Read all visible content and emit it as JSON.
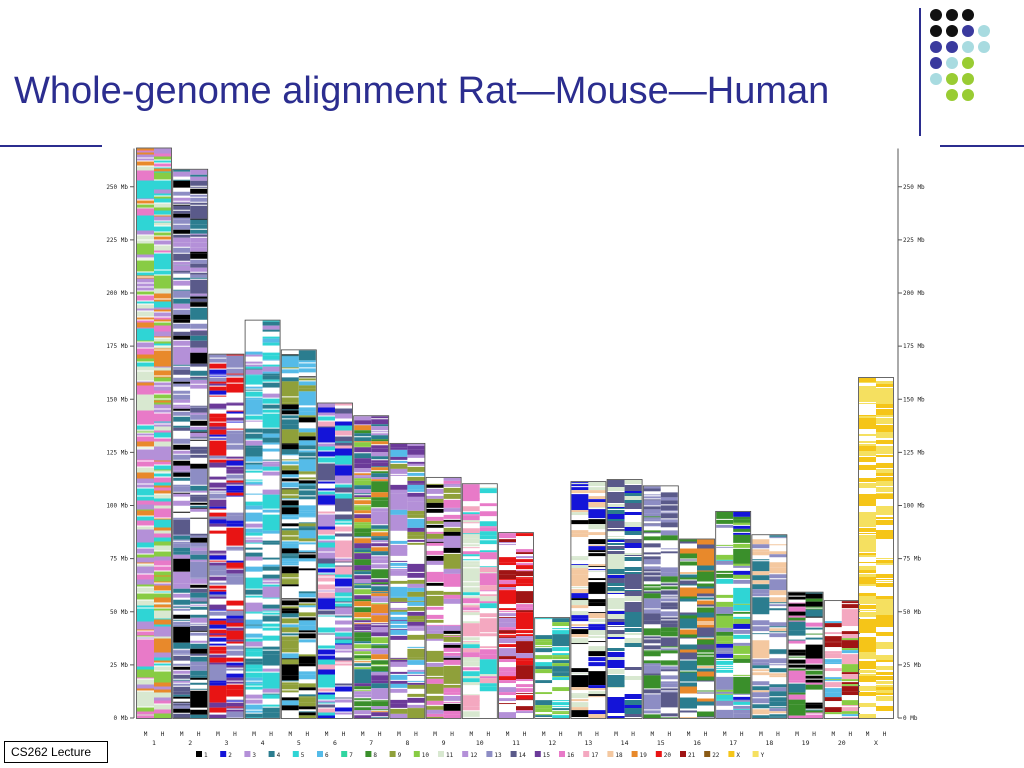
{
  "slide": {
    "title": "Whole-genome alignment Rat—Mouse—Human",
    "footer": "CS262 Lecture"
  },
  "decor": {
    "dot_colors": [
      "#111111",
      "#3a3a9e",
      "#a8dbe0",
      "#99cc33"
    ],
    "dot_grid": [
      [
        0,
        0,
        0,
        -1
      ],
      [
        0,
        0,
        1,
        2
      ],
      [
        1,
        1,
        2,
        2
      ],
      [
        1,
        2,
        3,
        -1
      ],
      [
        2,
        3,
        3,
        -1
      ],
      [
        -1,
        3,
        3,
        -1
      ]
    ],
    "accent": "#2b2d8f"
  },
  "chart_data": {
    "type": "chromosome-map",
    "column_labels": [
      "M",
      "H"
    ],
    "axis_labels": [
      "250 Mb",
      "225 Mb",
      "200 Mb",
      "175 Mb",
      "150 Mb",
      "125 Mb",
      "100 Mb",
      "75 Mb",
      "50 Mb",
      "25 Mb",
      "0 Mb"
    ],
    "axis_values": [
      250,
      225,
      200,
      175,
      150,
      125,
      100,
      75,
      50,
      25,
      0
    ],
    "ylim": [
      0,
      268
    ],
    "chromosomes": [
      {
        "label": "1",
        "size": 268,
        "colors": [
          "#e8892b",
          "#2fd5d5",
          "#88cc44",
          "#d8e8d0",
          "#e87ac8",
          "#b490d8"
        ]
      },
      {
        "label": "2",
        "size": 258,
        "colors": [
          "#b490d8",
          "#2b7d8f",
          "#000000",
          "#8d8dc4",
          "#5a5a8a",
          "#ffffff"
        ]
      },
      {
        "label": "3",
        "size": 171,
        "colors": [
          "#1414d8",
          "#e81414",
          "#8d8dc4",
          "#6b3a99",
          "#ffffff"
        ]
      },
      {
        "label": "4",
        "size": 187,
        "colors": [
          "#55bbe8",
          "#b490d8",
          "#2fd5d5",
          "#ffffff",
          "#2b7d8f"
        ]
      },
      {
        "label": "5",
        "size": 173,
        "colors": [
          "#2b7d8f",
          "#000000",
          "#55bbe8",
          "#8fa03a",
          "#ffffff"
        ]
      },
      {
        "label": "6",
        "size": 148,
        "colors": [
          "#b490d8",
          "#2fd5d5",
          "#5a5a8a",
          "#1414d8",
          "#ffffff",
          "#f4a8c0"
        ]
      },
      {
        "label": "7",
        "size": 142,
        "colors": [
          "#6b3a99",
          "#b490d8",
          "#2b7d8f",
          "#88cc44",
          "#3a8f2b",
          "#e8892b"
        ]
      },
      {
        "label": "8",
        "size": 129,
        "colors": [
          "#8fa03a",
          "#b490d8",
          "#6b3a99",
          "#ffffff",
          "#55bbe8"
        ]
      },
      {
        "label": "9",
        "size": 113,
        "colors": [
          "#000000",
          "#8fa03a",
          "#b490d8",
          "#ffffff",
          "#e87ac8"
        ]
      },
      {
        "label": "10",
        "size": 110,
        "colors": [
          "#f4a8c0",
          "#d8e8d0",
          "#2fd5d5",
          "#ffffff",
          "#e87ac8"
        ]
      },
      {
        "label": "11",
        "size": 87,
        "colors": [
          "#e87ac8",
          "#b490d8",
          "#a01414",
          "#ffffff",
          "#e81414"
        ]
      },
      {
        "label": "12",
        "size": 47,
        "colors": [
          "#2b7d8f",
          "#2fd5d5",
          "#88cc44",
          "#ffffff"
        ]
      },
      {
        "label": "13",
        "size": 111,
        "colors": [
          "#000000",
          "#d8e8d0",
          "#1414d8",
          "#f4c8a0",
          "#ffffff"
        ]
      },
      {
        "label": "14",
        "size": 112,
        "colors": [
          "#2b7d8f",
          "#1414d8",
          "#d8e8d0",
          "#5a5a8a",
          "#ffffff"
        ]
      },
      {
        "label": "15",
        "size": 109,
        "colors": [
          "#5a5a8a",
          "#3a8f2b",
          "#ffffff",
          "#8d8dc4"
        ]
      },
      {
        "label": "16",
        "size": 84,
        "colors": [
          "#3a8f2b",
          "#2b7d8f",
          "#5a5a8a",
          "#ffffff",
          "#e8892b"
        ]
      },
      {
        "label": "17",
        "size": 97,
        "colors": [
          "#1414d8",
          "#8d8dc4",
          "#88cc44",
          "#2fd5d5",
          "#ffffff",
          "#3a8f2b"
        ]
      },
      {
        "label": "18",
        "size": 86,
        "colors": [
          "#f4c8a0",
          "#2b7d8f",
          "#ffffff",
          "#8d8dc4"
        ]
      },
      {
        "label": "19",
        "size": 59,
        "colors": [
          "#3a8f2b",
          "#e87ac8",
          "#2b7d8f",
          "#000000",
          "#ffffff"
        ]
      },
      {
        "label": "20",
        "size": 55,
        "colors": [
          "#88cc44",
          "#55bbe8",
          "#f4a8c0",
          "#a01414",
          "#ffffff"
        ]
      },
      {
        "label": "X",
        "size": 160,
        "colors": [
          "#f5c518",
          "#f5e060",
          "#ffffff"
        ]
      }
    ],
    "legend": [
      {
        "label": "1",
        "color": "#000000"
      },
      {
        "label": "2",
        "color": "#1414d8"
      },
      {
        "label": "3",
        "color": "#b490d8"
      },
      {
        "label": "4",
        "color": "#2b7d8f"
      },
      {
        "label": "5",
        "color": "#2fd5d5"
      },
      {
        "label": "6",
        "color": "#55bbe8"
      },
      {
        "label": "7",
        "color": "#2fd5a0"
      },
      {
        "label": "8",
        "color": "#3a8f2b"
      },
      {
        "label": "9",
        "color": "#8fa03a"
      },
      {
        "label": "10",
        "color": "#88cc44"
      },
      {
        "label": "11",
        "color": "#d8e8d0"
      },
      {
        "label": "12",
        "color": "#b490d8"
      },
      {
        "label": "13",
        "color": "#8d8dc4"
      },
      {
        "label": "14",
        "color": "#5a5a8a"
      },
      {
        "label": "15",
        "color": "#6b3a99"
      },
      {
        "label": "16",
        "color": "#e87ac8"
      },
      {
        "label": "17",
        "color": "#f4a8c0"
      },
      {
        "label": "18",
        "color": "#f4c8a0"
      },
      {
        "label": "19",
        "color": "#e8892b"
      },
      {
        "label": "20",
        "color": "#e81414"
      },
      {
        "label": "21",
        "color": "#a01414"
      },
      {
        "label": "22",
        "color": "#8a5a14"
      },
      {
        "label": "X",
        "color": "#f5c518"
      },
      {
        "label": "Y",
        "color": "#f5e060"
      }
    ]
  }
}
